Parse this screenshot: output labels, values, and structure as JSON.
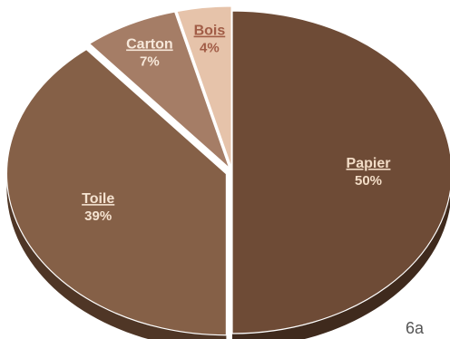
{
  "chart_data": {
    "type": "pie",
    "style": "3d-exploded",
    "start": "12 o'clock",
    "direction": "clockwise",
    "slices": [
      {
        "label": "Papier",
        "value": 50,
        "value_label": "50%",
        "color": "#6e4b36",
        "side_color": "#3f2a1d",
        "label_color": "#f2dcc6"
      },
      {
        "label": "Toile",
        "value": 39,
        "value_label": "39%",
        "color": "#856047",
        "side_color": "#4f3626",
        "label_color": "#f4e2d0"
      },
      {
        "label": "Carton",
        "value": 7,
        "value_label": "7%",
        "color": "#a57d66",
        "side_color": "#6b4c3a",
        "label_color": "#f7e8da"
      },
      {
        "label": "Bois",
        "value": 4,
        "value_label": "4%",
        "color": "#e6c3aa",
        "side_color": "#a8826a",
        "label_color": "#a15c46"
      }
    ]
  },
  "figure_id": "6a"
}
